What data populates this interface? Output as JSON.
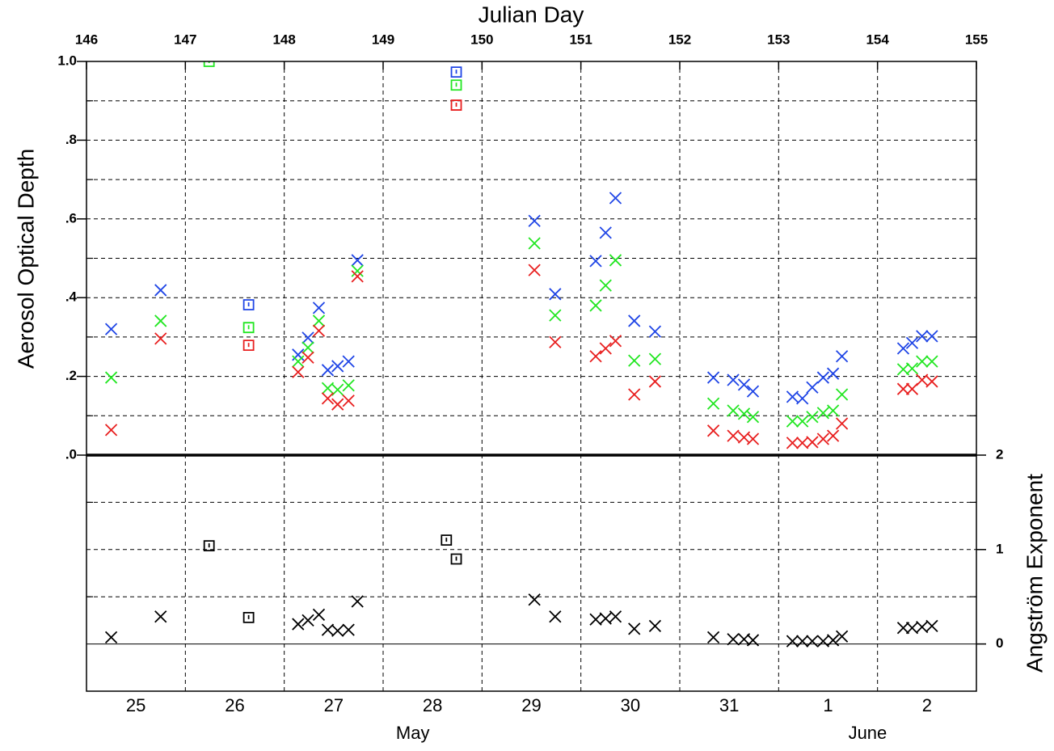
{
  "chart_data": [
    {
      "type": "scatter",
      "xlabel": "Julian Day",
      "ylabel": "Aerosol Optical Depth",
      "xlim": [
        146,
        155
      ],
      "xticks": [
        146,
        147,
        148,
        149,
        150,
        151,
        152,
        153,
        154,
        155
      ],
      "ylim": [
        0,
        1
      ],
      "yticks": [
        {
          "value": 0,
          "label": ".0"
        },
        {
          "value": 0.2,
          "label": ".2"
        },
        {
          "value": 0.4,
          "label": ".4"
        },
        {
          "value": 0.6,
          "label": ".6"
        },
        {
          "value": 0.8,
          "label": ".8"
        },
        {
          "value": 1,
          "label": "1.0"
        }
      ],
      "yminorticks": [
        0.1,
        0.3,
        0.5,
        0.7,
        0.9
      ],
      "grid": true,
      "series": [
        {
          "color": "#1f45e6",
          "marker": "x",
          "x": [
            146.25,
            146.75,
            148.14,
            148.24,
            148.35,
            148.44,
            148.54,
            148.65,
            148.74,
            150.53,
            150.74,
            151.15,
            151.25,
            151.35,
            151.54,
            151.75,
            152.34,
            152.54,
            152.65,
            152.74,
            153.14,
            153.24,
            153.34,
            153.45,
            153.55,
            153.64,
            154.26,
            154.35,
            154.45,
            154.55
          ],
          "values": [
            0.32,
            0.419,
            0.255,
            0.298,
            0.374,
            0.216,
            0.226,
            0.238,
            0.495,
            0.595,
            0.409,
            0.493,
            0.565,
            0.653,
            0.341,
            0.314,
            0.197,
            0.191,
            0.179,
            0.162,
            0.148,
            0.144,
            0.172,
            0.197,
            0.207,
            0.251,
            0.271,
            0.285,
            0.302,
            0.302
          ]
        },
        {
          "color": "#22e622",
          "marker": "x",
          "x": [
            146.25,
            146.75,
            148.14,
            148.24,
            148.35,
            148.44,
            148.54,
            148.65,
            148.74,
            150.53,
            150.74,
            151.15,
            151.25,
            151.35,
            151.54,
            151.75,
            152.34,
            152.54,
            152.65,
            152.74,
            153.14,
            153.24,
            153.34,
            153.45,
            153.55,
            153.64,
            154.26,
            154.35,
            154.45,
            154.55
          ],
          "values": [
            0.197,
            0.341,
            0.238,
            0.273,
            0.341,
            0.17,
            0.166,
            0.177,
            0.468,
            0.538,
            0.355,
            0.38,
            0.431,
            0.495,
            0.24,
            0.244,
            0.131,
            0.113,
            0.105,
            0.097,
            0.086,
            0.086,
            0.097,
            0.107,
            0.113,
            0.154,
            0.218,
            0.22,
            0.238,
            0.238
          ]
        },
        {
          "color": "#e81f1f",
          "marker": "x",
          "x": [
            146.25,
            146.75,
            148.14,
            148.24,
            148.35,
            148.44,
            148.54,
            148.65,
            148.74,
            150.53,
            150.74,
            151.15,
            151.25,
            151.35,
            151.54,
            151.75,
            152.34,
            152.54,
            152.65,
            152.74,
            153.14,
            153.24,
            153.34,
            153.45,
            153.55,
            153.64,
            154.26,
            154.35,
            154.45,
            154.55
          ],
          "values": [
            0.064,
            0.296,
            0.211,
            0.248,
            0.316,
            0.144,
            0.129,
            0.138,
            0.454,
            0.47,
            0.287,
            0.251,
            0.271,
            0.29,
            0.154,
            0.187,
            0.062,
            0.049,
            0.045,
            0.041,
            0.031,
            0.031,
            0.033,
            0.041,
            0.049,
            0.08,
            0.168,
            0.168,
            0.191,
            0.187
          ]
        },
        {
          "color": "#1f45e6",
          "marker": "square",
          "x": [
            147.64,
            149.74
          ],
          "values": [
            0.382,
            0.973
          ]
        },
        {
          "color": "#22e622",
          "marker": "square",
          "x": [
            147.24,
            147.64,
            149.74
          ],
          "values": [
            1.0,
            0.324,
            0.94
          ]
        },
        {
          "color": "#e81f1f",
          "marker": "square",
          "x": [
            147.64,
            149.74
          ],
          "values": [
            0.279,
            0.889
          ]
        }
      ]
    },
    {
      "type": "scatter",
      "ylabel": "Angström Exponent",
      "yaxis_side": "right",
      "xlim": [
        146,
        155
      ],
      "x2ticks": [
        {
          "value": 146.5,
          "label": "25"
        },
        {
          "value": 147.5,
          "label": "26"
        },
        {
          "value": 148.5,
          "label": "27"
        },
        {
          "value": 149.5,
          "label": "28"
        },
        {
          "value": 150.5,
          "label": "29"
        },
        {
          "value": 151.5,
          "label": "30"
        },
        {
          "value": 152.5,
          "label": "31"
        },
        {
          "value": 153.5,
          "label": "1"
        },
        {
          "value": 154.5,
          "label": "2"
        }
      ],
      "month_labels": [
        {
          "value": 149.3,
          "label": "May"
        },
        {
          "value": 153.9,
          "label": "June"
        }
      ],
      "ylim": [
        -0.5,
        2
      ],
      "yticks": [
        0,
        1,
        2
      ],
      "yminorticks": [
        0.5,
        1.5
      ],
      "grid": true,
      "series": [
        {
          "color": "#000000",
          "marker": "x",
          "x": [
            146.25,
            146.75,
            148.14,
            148.24,
            148.35,
            148.44,
            148.54,
            148.65,
            148.74,
            150.53,
            150.74,
            151.15,
            151.25,
            151.35,
            151.54,
            151.75,
            152.34,
            152.54,
            152.65,
            152.74,
            153.14,
            153.24,
            153.34,
            153.45,
            153.55,
            153.64,
            154.26,
            154.35,
            154.45,
            154.55
          ],
          "values": [
            0.07,
            0.29,
            0.21,
            0.25,
            0.31,
            0.15,
            0.14,
            0.15,
            0.45,
            0.47,
            0.29,
            0.26,
            0.27,
            0.29,
            0.16,
            0.19,
            0.07,
            0.05,
            0.05,
            0.04,
            0.03,
            0.03,
            0.03,
            0.03,
            0.04,
            0.08,
            0.17,
            0.17,
            0.18,
            0.19
          ]
        },
        {
          "color": "#000000",
          "marker": "square",
          "x": [
            147.24,
            147.64,
            149.64,
            149.74
          ],
          "values": [
            1.04,
            0.28,
            1.1,
            0.9
          ]
        }
      ]
    }
  ]
}
